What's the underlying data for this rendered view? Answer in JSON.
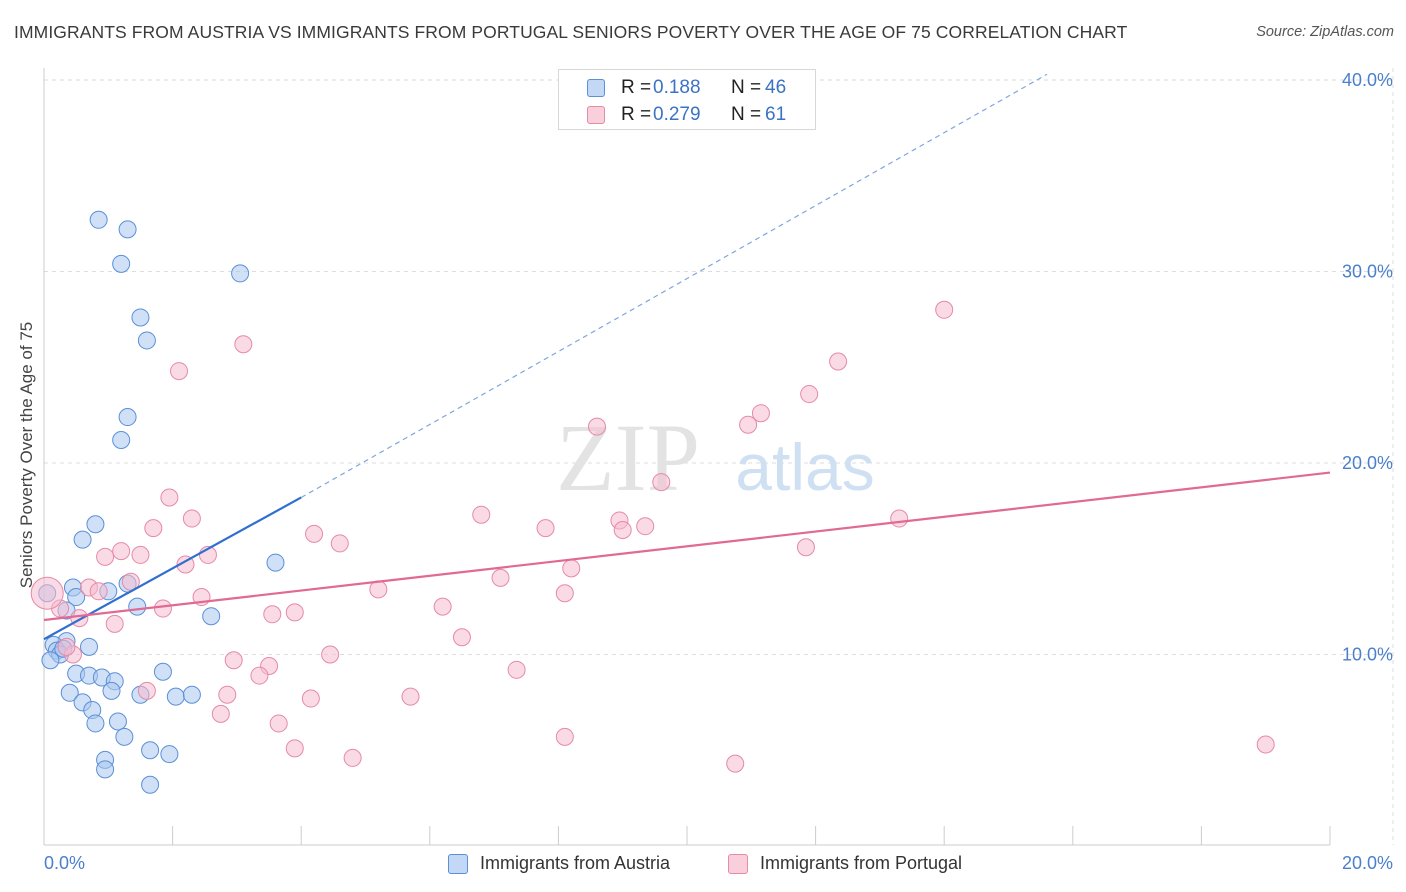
{
  "header": {
    "title": "IMMIGRANTS FROM AUSTRIA VS IMMIGRANTS FROM PORTUGAL SENIORS POVERTY OVER THE AGE OF 75 CORRELATION CHART",
    "source": "Source: ZipAtlas.com"
  },
  "legend": {
    "austria": {
      "r_label": "R =",
      "r_value": "0.188",
      "n_label": "N =",
      "n_value": "46"
    },
    "portugal": {
      "r_label": "R =",
      "r_value": "0.279",
      "n_label": "N =",
      "n_value": "61"
    }
  },
  "bottom_legend": {
    "austria": "Immigrants from Austria",
    "portugal": "Immigrants from Portugal"
  },
  "watermark": {
    "zip": "ZIP",
    "atlas": "atlas"
  },
  "colors": {
    "austria_fill": "#a9c8f0",
    "austria_stroke": "#5b8fd6",
    "austria_line": "#2f6fcf",
    "portugal_fill": "#f6bcd0",
    "portugal_stroke": "#e58aa8",
    "portugal_line": "#e06a93",
    "axis_text": "#4a7fcb",
    "grid": "#dddddd"
  },
  "chart_data": {
    "type": "scatter",
    "title": "IMMIGRANTS FROM AUSTRIA VS IMMIGRANTS FROM PORTUGAL SENIORS POVERTY OVER THE AGE OF 75 CORRELATION CHART",
    "xlabel": "",
    "ylabel": "Seniors Poverty Over the Age of 75",
    "xlim": [
      0,
      20
    ],
    "ylim": [
      0,
      42
    ],
    "x_tick_labels": [
      {
        "value": 0,
        "label": "0.0%"
      },
      {
        "value": 20,
        "label": "20.0%"
      }
    ],
    "y_tick_labels": [
      {
        "value": 10,
        "label": "10.0%"
      },
      {
        "value": 20,
        "label": "20.0%"
      },
      {
        "value": 30,
        "label": "30.0%"
      },
      {
        "value": 40,
        "label": "40.0%"
      }
    ],
    "series": [
      {
        "name": "Immigrants from Austria",
        "r": 0.188,
        "n": 46,
        "trend": {
          "x0": 0.0,
          "y0": 10.8,
          "x1": 4.0,
          "y1": 18.2,
          "dash_to_x": 15.6,
          "dash_to_y": 40.3
        },
        "points": [
          [
            0.85,
            32.7
          ],
          [
            1.3,
            32.2
          ],
          [
            1.2,
            30.4
          ],
          [
            3.05,
            29.9
          ],
          [
            1.5,
            27.6
          ],
          [
            1.6,
            26.4
          ],
          [
            1.3,
            22.4
          ],
          [
            1.2,
            21.2
          ],
          [
            0.8,
            16.8
          ],
          [
            0.6,
            16.0
          ],
          [
            3.6,
            14.8
          ],
          [
            0.45,
            13.5
          ],
          [
            1.3,
            13.7
          ],
          [
            1.0,
            13.3
          ],
          [
            0.5,
            13.0
          ],
          [
            0.05,
            13.2
          ],
          [
            1.45,
            12.5
          ],
          [
            0.35,
            12.3
          ],
          [
            2.6,
            12.0
          ],
          [
            0.35,
            10.7
          ],
          [
            0.7,
            10.4
          ],
          [
            0.15,
            10.5
          ],
          [
            0.2,
            10.2
          ],
          [
            0.25,
            10.0
          ],
          [
            0.3,
            10.3
          ],
          [
            0.1,
            9.7
          ],
          [
            1.85,
            9.1
          ],
          [
            0.5,
            9.0
          ],
          [
            0.7,
            8.9
          ],
          [
            0.9,
            8.8
          ],
          [
            1.1,
            8.6
          ],
          [
            0.4,
            8.0
          ],
          [
            1.05,
            8.1
          ],
          [
            1.5,
            7.9
          ],
          [
            2.05,
            7.8
          ],
          [
            2.3,
            7.9
          ],
          [
            0.6,
            7.5
          ],
          [
            0.75,
            7.1
          ],
          [
            0.8,
            6.4
          ],
          [
            1.15,
            6.5
          ],
          [
            1.65,
            5.0
          ],
          [
            1.95,
            4.8
          ],
          [
            0.95,
            4.5
          ],
          [
            0.95,
            4.0
          ],
          [
            1.65,
            3.2
          ],
          [
            1.25,
            5.7
          ]
        ]
      },
      {
        "name": "Immigrants from Portugal",
        "r": 0.279,
        "n": 61,
        "trend": {
          "x0": 0.0,
          "y0": 11.8,
          "x1": 20.0,
          "y1": 19.5
        },
        "points": [
          [
            14.0,
            28.0
          ],
          [
            3.1,
            26.2
          ],
          [
            12.35,
            25.3
          ],
          [
            2.1,
            24.8
          ],
          [
            11.9,
            23.6
          ],
          [
            11.15,
            22.6
          ],
          [
            10.95,
            22.0
          ],
          [
            8.6,
            21.9
          ],
          [
            9.6,
            19.0
          ],
          [
            1.95,
            18.2
          ],
          [
            6.8,
            17.3
          ],
          [
            13.3,
            17.1
          ],
          [
            2.3,
            17.1
          ],
          [
            8.95,
            17.0
          ],
          [
            9.35,
            16.7
          ],
          [
            1.7,
            16.6
          ],
          [
            7.8,
            16.6
          ],
          [
            9.0,
            16.5
          ],
          [
            4.2,
            16.3
          ],
          [
            4.6,
            15.8
          ],
          [
            11.85,
            15.6
          ],
          [
            1.2,
            15.4
          ],
          [
            0.95,
            15.1
          ],
          [
            1.5,
            15.2
          ],
          [
            2.55,
            15.2
          ],
          [
            2.2,
            14.7
          ],
          [
            8.2,
            14.5
          ],
          [
            7.1,
            14.0
          ],
          [
            1.35,
            13.8
          ],
          [
            0.7,
            13.5
          ],
          [
            0.85,
            13.3
          ],
          [
            5.2,
            13.4
          ],
          [
            2.45,
            13.0
          ],
          [
            8.1,
            13.2
          ],
          [
            0.25,
            12.4
          ],
          [
            1.85,
            12.4
          ],
          [
            6.2,
            12.5
          ],
          [
            3.9,
            12.2
          ],
          [
            3.55,
            12.1
          ],
          [
            0.55,
            11.9
          ],
          [
            1.1,
            11.6
          ],
          [
            6.5,
            10.9
          ],
          [
            4.45,
            10.0
          ],
          [
            0.45,
            10.0
          ],
          [
            2.95,
            9.7
          ],
          [
            3.5,
            9.4
          ],
          [
            7.35,
            9.2
          ],
          [
            3.35,
            8.9
          ],
          [
            1.6,
            8.1
          ],
          [
            2.85,
            7.9
          ],
          [
            4.15,
            7.7
          ],
          [
            5.7,
            7.8
          ],
          [
            2.75,
            6.9
          ],
          [
            3.65,
            6.4
          ],
          [
            8.1,
            5.7
          ],
          [
            19.0,
            5.3
          ],
          [
            3.9,
            5.1
          ],
          [
            4.8,
            4.6
          ],
          [
            10.75,
            4.3
          ],
          [
            0.05,
            13.2
          ],
          [
            0.35,
            10.4
          ]
        ]
      }
    ]
  }
}
